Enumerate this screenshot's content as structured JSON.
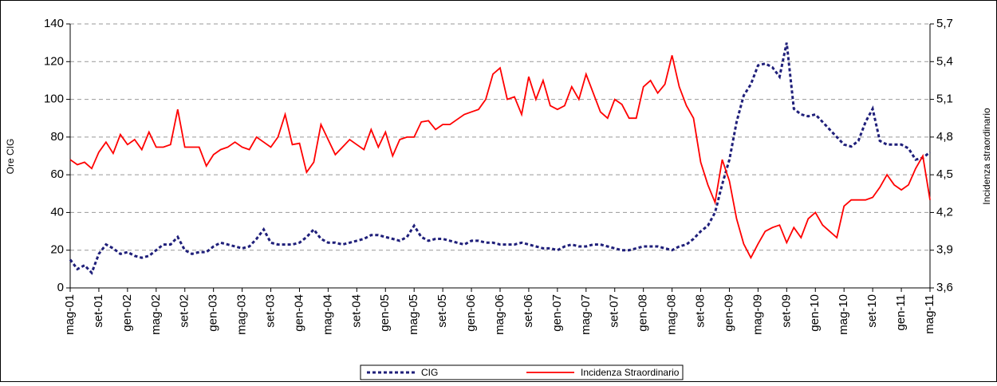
{
  "chart_data": {
    "type": "line",
    "ylabel": "Ore CIG",
    "y2label": "Incidenza straordinario",
    "categories": [
      "mag-01",
      null,
      null,
      null,
      "set-01",
      null,
      null,
      null,
      "gen-02",
      null,
      null,
      null,
      "mag-02",
      null,
      null,
      null,
      "set-02",
      null,
      null,
      null,
      "gen-03",
      null,
      null,
      null,
      "mag-03",
      null,
      null,
      null,
      "set-03",
      null,
      null,
      null,
      "gen-04",
      null,
      null,
      null,
      "mag-04",
      null,
      null,
      null,
      "set-04",
      null,
      null,
      null,
      "gen-05",
      null,
      null,
      null,
      "mag-05",
      null,
      null,
      null,
      "set-05",
      null,
      null,
      null,
      "gen-06",
      null,
      null,
      null,
      "mag-06",
      null,
      null,
      null,
      "set-06",
      null,
      null,
      null,
      "gen-07",
      null,
      null,
      null,
      "mag-07",
      null,
      null,
      null,
      "set-07",
      null,
      null,
      null,
      "gen-08",
      null,
      null,
      null,
      "mag-08",
      null,
      null,
      null,
      "set-08",
      null,
      null,
      null,
      "gen-09",
      null,
      null,
      null,
      "mag-09",
      null,
      null,
      null,
      "set-09",
      null,
      null,
      null,
      "gen-10",
      null,
      null,
      null,
      "mag-10",
      null,
      null,
      null,
      "set-10",
      null,
      null,
      null,
      "gen-11",
      null,
      null,
      null,
      "mag-11"
    ],
    "series": [
      {
        "name": "CIG",
        "color": "#1f1f7a",
        "dash": true,
        "values": [
          15,
          10,
          12,
          8,
          18,
          23,
          21,
          18,
          19,
          17,
          16,
          17,
          20,
          23,
          23,
          27,
          20,
          18,
          19,
          19,
          22,
          24,
          23,
          22,
          21,
          22,
          26,
          31,
          24,
          23,
          23,
          23,
          24,
          27,
          31,
          26,
          24,
          24,
          23,
          24,
          25,
          26,
          28,
          28,
          27,
          26,
          25,
          27,
          33,
          27,
          25,
          26,
          26,
          25,
          24,
          23,
          25,
          25,
          24,
          24,
          23,
          23,
          23,
          24,
          23,
          22,
          21,
          21,
          20,
          22,
          23,
          22,
          22,
          23,
          23,
          22,
          21,
          20,
          20,
          21,
          22,
          22,
          22,
          21,
          20,
          22,
          23,
          26,
          30,
          33,
          40,
          55,
          68,
          88,
          102,
          108,
          118,
          119,
          117,
          112,
          130,
          95,
          92,
          91,
          92,
          88,
          84,
          80,
          76,
          75,
          78,
          88,
          95,
          78,
          76,
          76,
          76,
          74,
          68,
          69,
          72
        ]
      },
      {
        "name": "Incidenza Straordinario",
        "color": "#ff0000",
        "axis": "y2",
        "values": [
          4.62,
          4.58,
          4.6,
          4.55,
          4.68,
          4.76,
          4.67,
          4.82,
          4.74,
          4.78,
          4.7,
          4.84,
          4.72,
          4.72,
          4.74,
          5.02,
          4.72,
          4.72,
          4.72,
          4.57,
          4.66,
          4.7,
          4.72,
          4.76,
          4.72,
          4.7,
          4.8,
          4.76,
          4.72,
          4.8,
          4.98,
          4.74,
          4.75,
          4.52,
          4.6,
          4.9,
          4.78,
          4.66,
          4.72,
          4.78,
          4.74,
          4.7,
          4.86,
          4.72,
          4.84,
          4.65,
          4.78,
          4.8,
          4.8,
          4.92,
          4.93,
          4.86,
          4.9,
          4.9,
          4.94,
          4.98,
          5.0,
          5.02,
          5.1,
          5.3,
          5.35,
          5.1,
          5.12,
          4.98,
          5.28,
          5.1,
          5.25,
          5.05,
          5.02,
          5.05,
          5.2,
          5.1,
          5.3,
          5.15,
          5.0,
          4.95,
          5.1,
          5.06,
          4.95,
          4.95,
          5.2,
          5.25,
          5.15,
          5.22,
          5.45,
          5.2,
          5.05,
          4.95,
          4.6,
          4.42,
          4.28,
          4.62,
          4.45,
          4.15,
          3.95,
          3.84,
          3.95,
          4.05,
          4.08,
          4.1,
          3.96,
          4.08,
          4.0,
          4.15,
          4.2,
          4.1,
          4.05,
          4.0,
          4.25,
          4.3,
          4.3,
          4.3,
          4.32,
          4.4,
          4.5,
          4.42,
          4.38,
          4.42,
          4.55,
          4.65,
          4.3
        ]
      }
    ],
    "ylim": [
      0,
      140
    ],
    "yticks": [
      0,
      20,
      40,
      60,
      80,
      100,
      120,
      140
    ],
    "y2lim": [
      3.6,
      5.7
    ],
    "y2ticks": [
      {
        "value": 3.6,
        "label": "3,6"
      },
      {
        "value": 3.9,
        "label": "3,9"
      },
      {
        "value": 4.2,
        "label": "4,2"
      },
      {
        "value": 4.5,
        "label": "4,5"
      },
      {
        "value": 4.8,
        "label": "4,8"
      },
      {
        "value": 5.1,
        "label": "5,1"
      },
      {
        "value": 5.4,
        "label": "5,4"
      },
      {
        "value": 5.7,
        "label": "5,7"
      }
    ],
    "grid": true,
    "legend": "bottom"
  }
}
